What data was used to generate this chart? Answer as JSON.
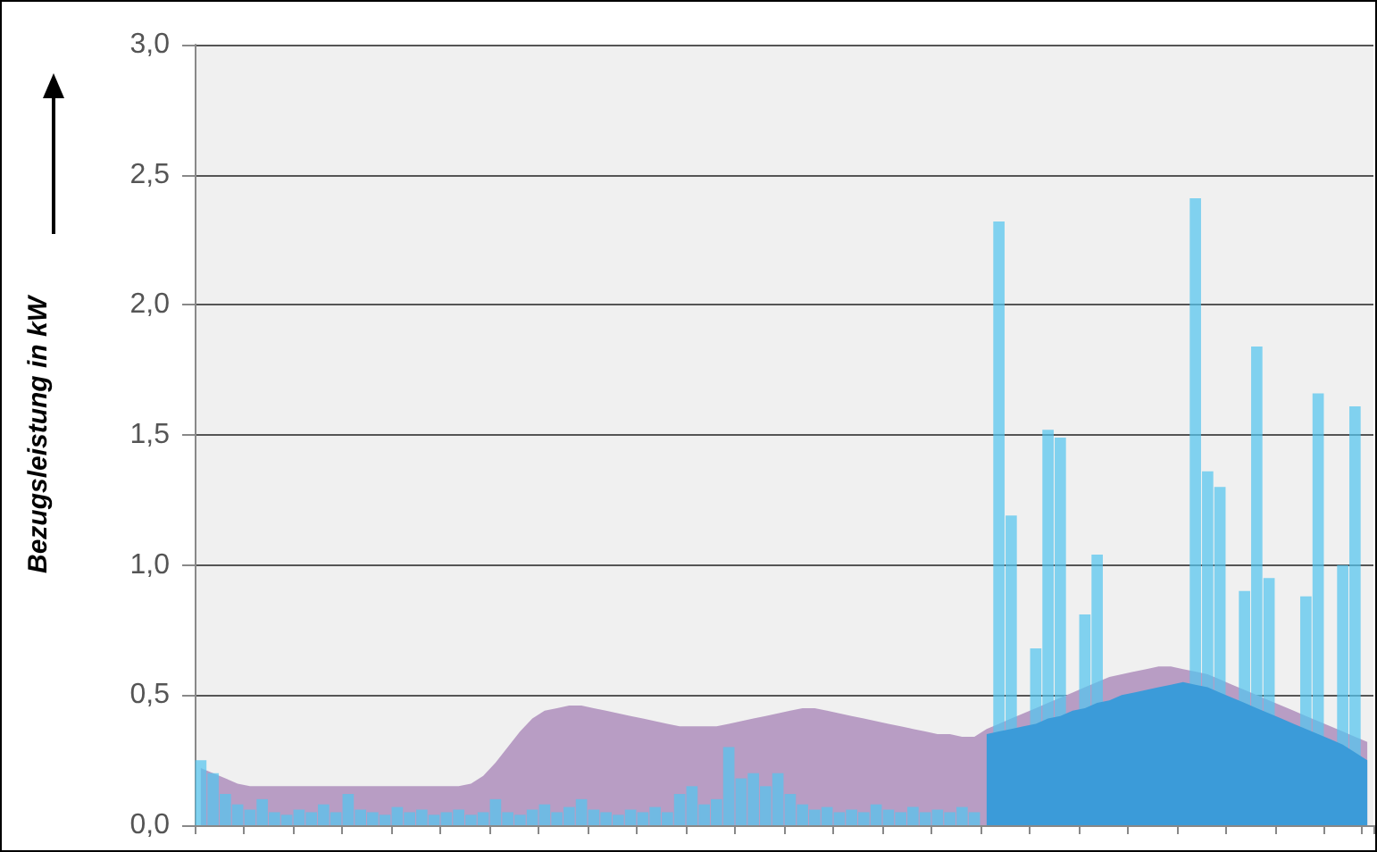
{
  "chart_data": {
    "type": "bar",
    "ylabel": "Bezugsleistung in kW",
    "categories": [
      null,
      null,
      null,
      null,
      null,
      null,
      null,
      null,
      null,
      null,
      null,
      null,
      null,
      null,
      null,
      null,
      null,
      null,
      null,
      null,
      null,
      null,
      null,
      null,
      null,
      null,
      null,
      null,
      null,
      null,
      null,
      null,
      null,
      null,
      null,
      null,
      null,
      null,
      null,
      null,
      null,
      null,
      null,
      null,
      null,
      null,
      null,
      null,
      null,
      null,
      null,
      null,
      null,
      null,
      null,
      null,
      null,
      null,
      null,
      null,
      null,
      null,
      null,
      null,
      null,
      null,
      null,
      null,
      null,
      null,
      null,
      null,
      null,
      null,
      null,
      null,
      null,
      null,
      null,
      null,
      null,
      null,
      null,
      null,
      null,
      null,
      null,
      null,
      null,
      null,
      null,
      null,
      null,
      null,
      null,
      null
    ],
    "ylim": [
      0,
      3
    ],
    "yticks": [
      {
        "value": 0,
        "label": "0,0"
      },
      {
        "value": 0.5,
        "label": "0,5"
      },
      {
        "value": 1,
        "label": "1,0"
      },
      {
        "value": 1.5,
        "label": "1,5"
      },
      {
        "value": 2,
        "label": "2,0"
      },
      {
        "value": 2.5,
        "label": "2,5"
      },
      {
        "value": 3,
        "label": "3,0"
      }
    ],
    "grid": "y",
    "tick_labels": "y",
    "series": [
      {
        "type": "area",
        "color": "#b89dc4",
        "values": [
          0.22,
          0.2,
          0.18,
          0.16,
          0.15,
          0.15,
          0.15,
          0.15,
          0.15,
          0.15,
          0.15,
          0.15,
          0.15,
          0.15,
          0.15,
          0.15,
          0.15,
          0.15,
          0.15,
          0.15,
          0.15,
          0.15,
          0.16,
          0.19,
          0.24,
          0.3,
          0.36,
          0.41,
          0.44,
          0.45,
          0.46,
          0.46,
          0.45,
          0.44,
          0.43,
          0.42,
          0.41,
          0.4,
          0.39,
          0.38,
          0.38,
          0.38,
          0.38,
          0.39,
          0.4,
          0.41,
          0.42,
          0.43,
          0.44,
          0.45,
          0.45,
          0.44,
          0.43,
          0.42,
          0.41,
          0.4,
          0.39,
          0.38,
          0.37,
          0.36,
          0.35,
          0.35,
          0.34,
          0.34,
          0.37,
          0.39,
          0.41,
          0.43,
          0.45,
          0.47,
          0.49,
          0.51,
          0.53,
          0.55,
          0.57,
          0.58,
          0.59,
          0.6,
          0.61,
          0.61,
          0.6,
          0.59,
          0.58,
          0.56,
          0.54,
          0.52,
          0.5,
          0.48,
          0.46,
          0.44,
          0.42,
          0.4,
          0.38,
          0.36,
          0.34,
          0.32
        ]
      },
      {
        "color": "#55c5ef",
        "values": [
          0.25,
          0.2,
          0.12,
          0.08,
          0.06,
          0.1,
          0.05,
          0.04,
          0.06,
          0.05,
          0.08,
          0.05,
          0.12,
          0.06,
          0.05,
          0.04,
          0.07,
          0.05,
          0.06,
          0.04,
          0.05,
          0.06,
          0.04,
          0.05,
          0.1,
          0.05,
          0.04,
          0.06,
          0.08,
          0.05,
          0.07,
          0.1,
          0.06,
          0.05,
          0.04,
          0.06,
          0.05,
          0.07,
          0.05,
          0.12,
          0.15,
          0.08,
          0.1,
          0.3,
          0.18,
          0.2,
          0.15,
          0.2,
          0.12,
          0.08,
          0.06,
          0.07,
          0.05,
          0.06,
          0.05,
          0.08,
          0.06,
          0.05,
          0.07,
          0.05,
          0.06,
          0.05,
          0.07,
          0.05,
          null,
          2.32,
          1.19,
          null,
          0.68,
          1.52,
          1.49,
          null,
          0.81,
          1.04,
          null,
          null,
          null,
          null,
          null,
          null,
          null,
          2.41,
          1.36,
          1.3,
          null,
          0.9,
          1.84,
          0.95,
          null,
          null,
          0.88,
          1.66,
          null,
          1.0,
          1.61,
          null
        ]
      },
      {
        "type": "area",
        "color": "#3b9bd9",
        "values": [
          null,
          null,
          null,
          null,
          null,
          null,
          null,
          null,
          null,
          null,
          null,
          null,
          null,
          null,
          null,
          null,
          null,
          null,
          null,
          null,
          null,
          null,
          null,
          null,
          null,
          null,
          null,
          null,
          null,
          null,
          null,
          null,
          null,
          null,
          null,
          null,
          null,
          null,
          null,
          null,
          null,
          null,
          null,
          null,
          null,
          null,
          null,
          null,
          null,
          null,
          null,
          null,
          null,
          null,
          null,
          null,
          null,
          null,
          null,
          null,
          null,
          null,
          null,
          null,
          0.35,
          0.36,
          0.37,
          0.38,
          0.39,
          0.41,
          0.42,
          0.44,
          0.45,
          0.47,
          0.48,
          0.5,
          0.51,
          0.52,
          0.53,
          0.54,
          0.55,
          0.54,
          0.53,
          0.51,
          0.49,
          0.47,
          0.45,
          0.43,
          0.41,
          0.39,
          0.37,
          0.35,
          0.33,
          0.31,
          0.28,
          0.25
        ]
      }
    ]
  }
}
